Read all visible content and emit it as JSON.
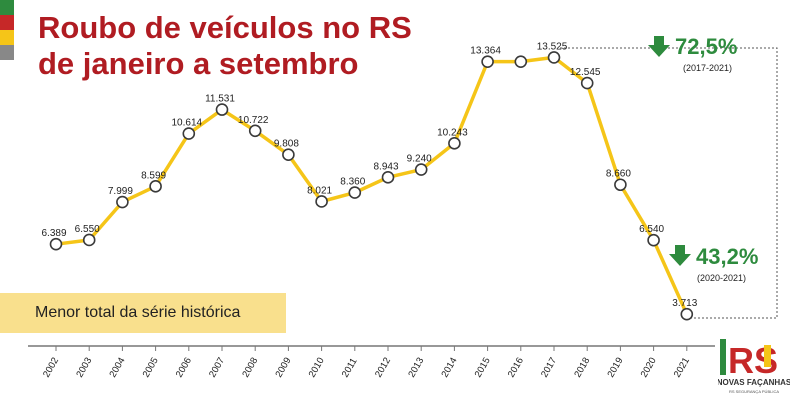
{
  "title_line1": "Roubo de veículos no RS",
  "title_line2": "de janeiro a setembro",
  "note": "Menor total da série histórica",
  "callouts": [
    {
      "value": "72,5%",
      "period": "(2017-2021)"
    },
    {
      "value": "43,2%",
      "period": "(2020-2021)"
    }
  ],
  "logo": {
    "text": "NOVAS FAÇANHAS",
    "subtext": "RS SEGURANÇA PÚBLICA"
  },
  "colors": {
    "title": "#b01c22",
    "line": "#f5c518",
    "down_arrow": "#2e8b3e",
    "note_bg": "#f9e08d"
  },
  "chart_data": {
    "type": "line",
    "title": "Roubo de veículos no RS de janeiro a setembro",
    "categories": [
      "2002",
      "2003",
      "2004",
      "2005",
      "2006",
      "2007",
      "2008",
      "2009",
      "2010",
      "2011",
      "2012",
      "2013",
      "2014",
      "2015",
      "2016",
      "2017",
      "2018",
      "2019",
      "2020",
      "2021"
    ],
    "values": [
      6389,
      6550,
      7999,
      8599,
      10614,
      11531,
      10722,
      9808,
      8021,
      8360,
      8943,
      9240,
      10243,
      13364,
      13364,
      13525,
      12545,
      8660,
      6540,
      3713
    ],
    "labels": [
      "6.389",
      "6.550",
      "7.999",
      "8.599",
      "10.614",
      "11.531",
      "10.722",
      "9.808",
      "8.021",
      "8.360",
      "8.943",
      "9.240",
      "10.243",
      "13.364",
      "",
      "13.525",
      "12.545",
      "8.660",
      "6.540",
      "3.713"
    ],
    "ylim": [
      3300,
      14000
    ],
    "grid": false
  }
}
